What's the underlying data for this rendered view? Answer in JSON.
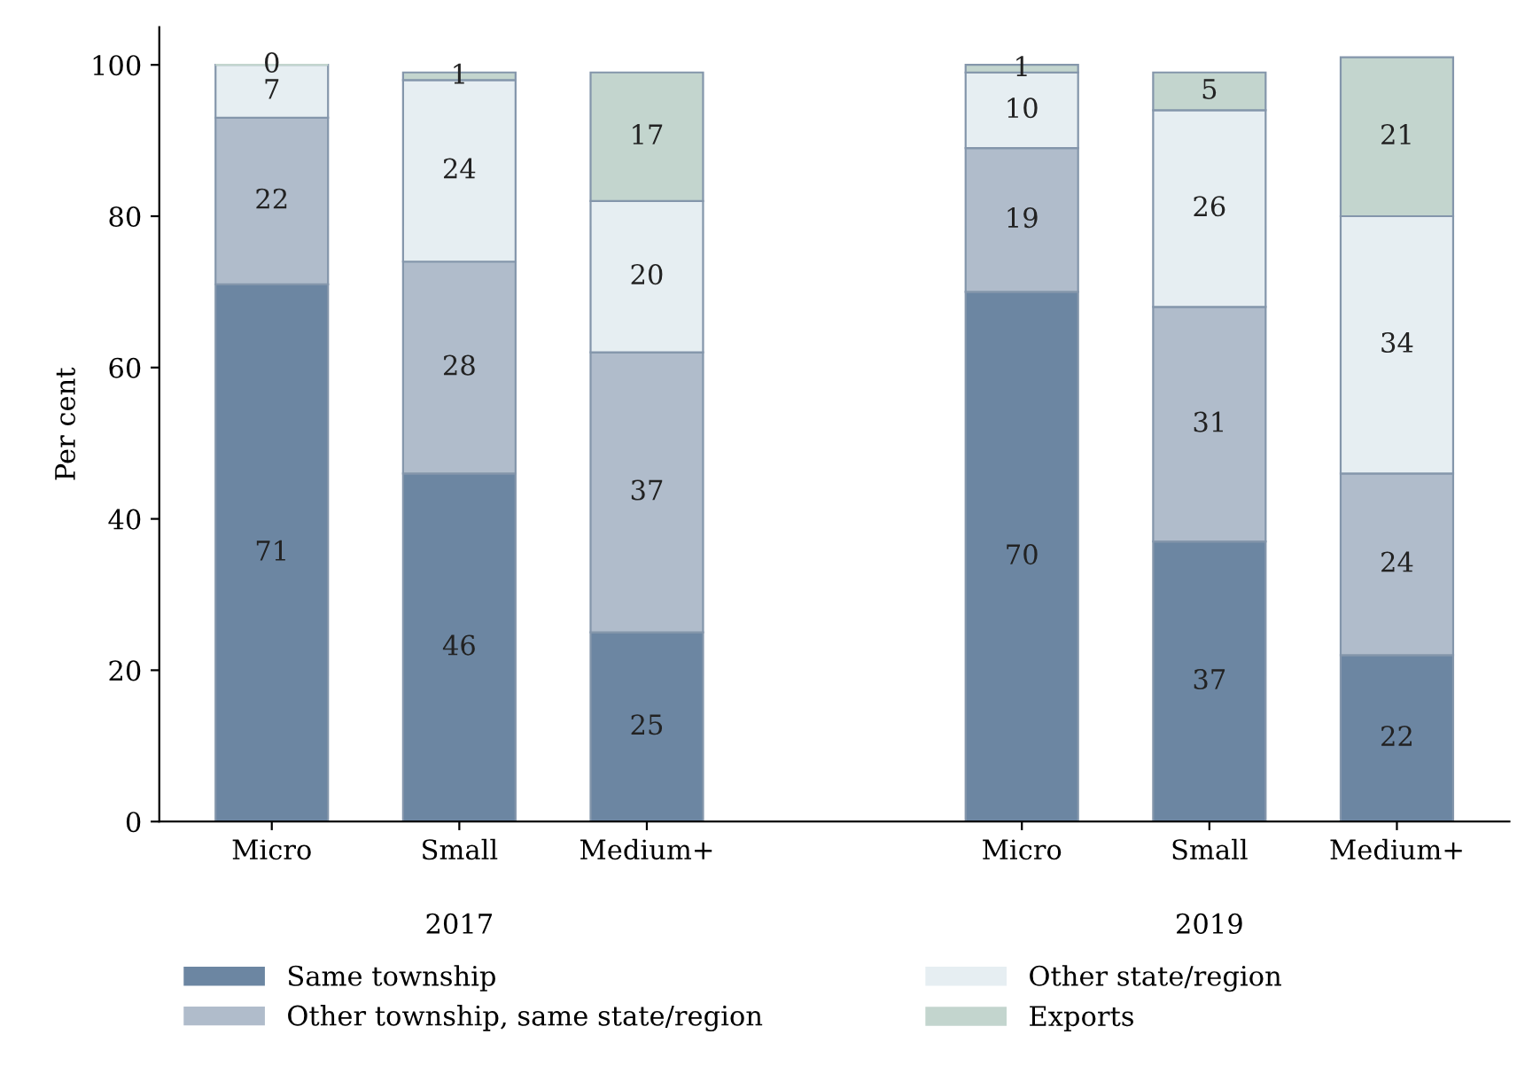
{
  "chart_data": {
    "type": "bar",
    "stacked": true,
    "ylabel": "Per cent",
    "categories": [
      "Micro",
      "Small",
      "Medium+",
      null,
      "Micro",
      "Small",
      "Medium+"
    ],
    "series": [
      {
        "name": "Same township",
        "color": "#6c86a2",
        "values": [
          71,
          46,
          25,
          null,
          70,
          37,
          22
        ]
      },
      {
        "name": "Other township, same state/region",
        "color": "#b0bccb",
        "values": [
          22,
          28,
          37,
          null,
          19,
          31,
          24
        ]
      },
      {
        "name": "Other state/region",
        "color": "#e6eef2",
        "values": [
          7,
          24,
          20,
          null,
          10,
          26,
          34
        ]
      },
      {
        "name": "Exports",
        "color": "#c3d5ce",
        "values": [
          0,
          1,
          17,
          null,
          1,
          5,
          21
        ]
      }
    ],
    "annotations": [
      "2017",
      "2019"
    ],
    "ylim": [
      0,
      105
    ],
    "yticks": [
      0,
      20,
      40,
      60,
      80,
      100
    ],
    "data_labels": true,
    "grid": false,
    "legend": "bottom"
  }
}
